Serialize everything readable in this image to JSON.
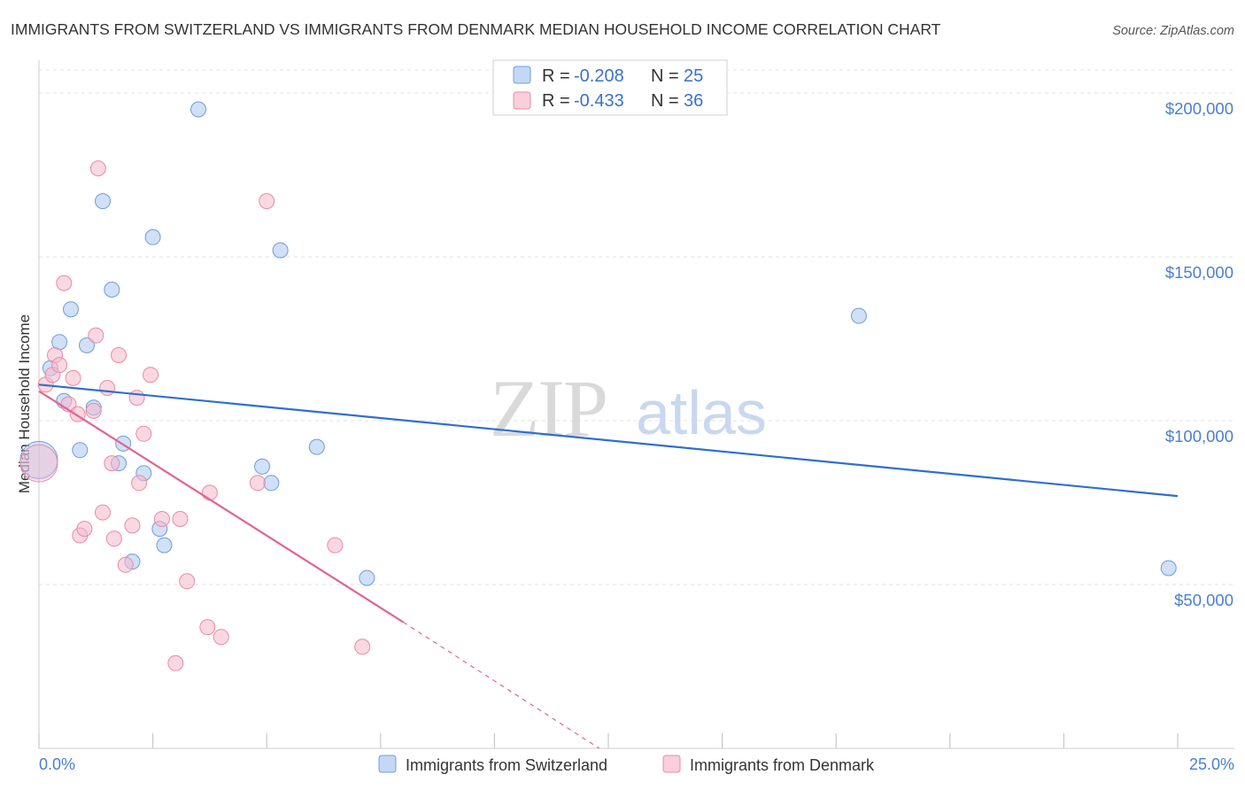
{
  "chart_data": {
    "type": "scatter",
    "title": "IMMIGRANTS FROM SWITZERLAND VS IMMIGRANTS FROM DENMARK MEDIAN HOUSEHOLD INCOME CORRELATION CHART",
    "source": "Source: ZipAtlas.com",
    "watermark": {
      "zip": "ZIP",
      "atlas": "atlas"
    },
    "xlabel": "",
    "ylabel": "Median Household Income",
    "xlim": [
      0,
      25
    ],
    "ylim": [
      0,
      210000
    ],
    "x_tick_labels": [
      "0.0%",
      "25.0%"
    ],
    "y_ticks": [
      {
        "value": 50000,
        "label": "$50,000"
      },
      {
        "value": 100000,
        "label": "$100,000"
      },
      {
        "value": 150000,
        "label": "$150,000"
      },
      {
        "value": 200000,
        "label": "$200,000"
      }
    ],
    "legend_top": {
      "r_label": "R =",
      "n_label": "N =",
      "rows": [
        {
          "r": "-0.208",
          "n": "25"
        },
        {
          "r": "-0.433",
          "n": "36"
        }
      ]
    },
    "series": [
      {
        "name": "Immigrants from Switzerland",
        "color": "#a9c6ee",
        "stroke": "#6f9ddb",
        "line_color": "#2f6fce",
        "trend": {
          "x": [
            0.0,
            25.0
          ],
          "y": [
            111000,
            77000
          ]
        },
        "points": [
          {
            "x": 0.0,
            "y": 88000,
            "big": true
          },
          {
            "x": 0.25,
            "y": 116000
          },
          {
            "x": 0.45,
            "y": 124000
          },
          {
            "x": 0.55,
            "y": 106000
          },
          {
            "x": 0.7,
            "y": 134000
          },
          {
            "x": 0.9,
            "y": 91000
          },
          {
            "x": 1.05,
            "y": 123000
          },
          {
            "x": 1.2,
            "y": 104000
          },
          {
            "x": 1.4,
            "y": 167000
          },
          {
            "x": 1.6,
            "y": 140000
          },
          {
            "x": 1.75,
            "y": 87000
          },
          {
            "x": 1.85,
            "y": 93000
          },
          {
            "x": 2.05,
            "y": 57000
          },
          {
            "x": 2.3,
            "y": 84000
          },
          {
            "x": 2.5,
            "y": 156000
          },
          {
            "x": 2.65,
            "y": 67000
          },
          {
            "x": 2.75,
            "y": 62000
          },
          {
            "x": 3.5,
            "y": 195000
          },
          {
            "x": 4.9,
            "y": 86000
          },
          {
            "x": 5.1,
            "y": 81000
          },
          {
            "x": 5.3,
            "y": 152000
          },
          {
            "x": 6.1,
            "y": 92000
          },
          {
            "x": 7.2,
            "y": 52000
          },
          {
            "x": 18.0,
            "y": 132000
          },
          {
            "x": 24.8,
            "y": 55000
          }
        ]
      },
      {
        "name": "Immigrants from Denmark",
        "color": "#f6b8cb",
        "stroke": "#e98aa8",
        "line_color": "#e2648e",
        "trend": {
          "x": [
            0.0,
            8.0
          ],
          "y": [
            109000,
            38500
          ]
        },
        "trend_dashed": {
          "x": [
            8.0,
            12.3
          ],
          "y": [
            38500,
            0
          ]
        },
        "points": [
          {
            "x": 0.0,
            "y": 87000,
            "big": true
          },
          {
            "x": 0.15,
            "y": 111000
          },
          {
            "x": 0.3,
            "y": 114000
          },
          {
            "x": 0.35,
            "y": 120000
          },
          {
            "x": 0.45,
            "y": 117000
          },
          {
            "x": 0.55,
            "y": 142000
          },
          {
            "x": 0.65,
            "y": 105000
          },
          {
            "x": 0.75,
            "y": 113000
          },
          {
            "x": 0.85,
            "y": 102000
          },
          {
            "x": 0.9,
            "y": 65000
          },
          {
            "x": 1.0,
            "y": 67000
          },
          {
            "x": 1.2,
            "y": 103000
          },
          {
            "x": 1.25,
            "y": 126000
          },
          {
            "x": 1.3,
            "y": 177000
          },
          {
            "x": 1.4,
            "y": 72000
          },
          {
            "x": 1.5,
            "y": 110000
          },
          {
            "x": 1.6,
            "y": 87000
          },
          {
            "x": 1.65,
            "y": 64000
          },
          {
            "x": 1.75,
            "y": 120000
          },
          {
            "x": 1.9,
            "y": 56000
          },
          {
            "x": 2.05,
            "y": 68000
          },
          {
            "x": 2.15,
            "y": 107000
          },
          {
            "x": 2.2,
            "y": 81000
          },
          {
            "x": 2.3,
            "y": 96000
          },
          {
            "x": 2.45,
            "y": 114000
          },
          {
            "x": 2.7,
            "y": 70000
          },
          {
            "x": 3.0,
            "y": 26000
          },
          {
            "x": 3.1,
            "y": 70000
          },
          {
            "x": 3.25,
            "y": 51000
          },
          {
            "x": 3.7,
            "y": 37000
          },
          {
            "x": 3.75,
            "y": 78000
          },
          {
            "x": 4.0,
            "y": 34000
          },
          {
            "x": 4.8,
            "y": 81000
          },
          {
            "x": 5.0,
            "y": 167000
          },
          {
            "x": 6.5,
            "y": 62000
          },
          {
            "x": 7.1,
            "y": 31000
          }
        ]
      }
    ]
  }
}
